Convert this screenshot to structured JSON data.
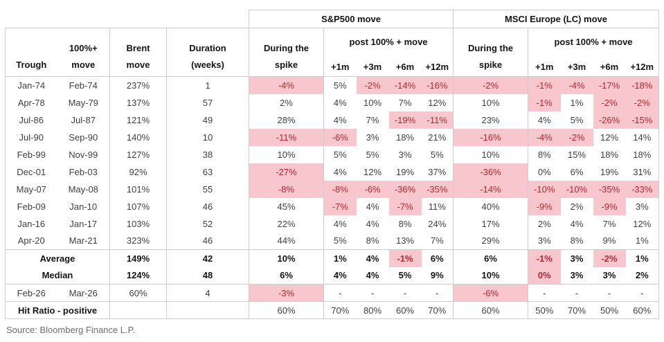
{
  "table": {
    "groups": [
      "S&P500 move",
      "MSCI Europe (LC) move"
    ],
    "headers": {
      "trough": "Trough",
      "peak": "100%+\nmove",
      "brent": "Brent\nmove",
      "duration": "Duration\n(weeks)",
      "during": "During the\nspike",
      "post": "post 100% + move",
      "months": [
        "+1m",
        "+3m",
        "+6m",
        "+12m"
      ]
    },
    "episodes": [
      {
        "trough": "Jan-74",
        "peak": "Feb-74",
        "brent": "237%",
        "weeks": "1",
        "cells": [
          [
            "-4%",
            1
          ],
          [
            "5%",
            0
          ],
          [
            "-2%",
            1
          ],
          [
            "-14%",
            1
          ],
          [
            "-16%",
            1
          ],
          [
            "-2%",
            1
          ],
          [
            "-1%",
            1
          ],
          [
            "-4%",
            1
          ],
          [
            "-17%",
            1
          ],
          [
            "-18%",
            1
          ]
        ]
      },
      {
        "trough": "Apr-78",
        "peak": "May-79",
        "brent": "137%",
        "weeks": "57",
        "cells": [
          [
            "2%",
            0
          ],
          [
            "4%",
            0
          ],
          [
            "10%",
            0
          ],
          [
            "7%",
            0
          ],
          [
            "12%",
            0
          ],
          [
            "10%",
            0
          ],
          [
            "-1%",
            1
          ],
          [
            "1%",
            0
          ],
          [
            "-2%",
            1
          ],
          [
            "-2%",
            1
          ]
        ]
      },
      {
        "trough": "Jul-86",
        "peak": "Jul-87",
        "brent": "121%",
        "weeks": "49",
        "cells": [
          [
            "28%",
            0
          ],
          [
            "4%",
            0
          ],
          [
            "7%",
            0
          ],
          [
            "-19%",
            1
          ],
          [
            "-11%",
            1
          ],
          [
            "23%",
            0
          ],
          [
            "4%",
            0
          ],
          [
            "5%",
            0
          ],
          [
            "-26%",
            1
          ],
          [
            "-15%",
            1
          ]
        ]
      },
      {
        "trough": "Jul-90",
        "peak": "Sep-90",
        "brent": "140%",
        "weeks": "10",
        "cells": [
          [
            "-11%",
            1
          ],
          [
            "-6%",
            1
          ],
          [
            "3%",
            0
          ],
          [
            "18%",
            0
          ],
          [
            "21%",
            0
          ],
          [
            "-16%",
            1
          ],
          [
            "-4%",
            1
          ],
          [
            "-2%",
            1
          ],
          [
            "12%",
            0
          ],
          [
            "14%",
            0
          ]
        ]
      },
      {
        "trough": "Feb-99",
        "peak": "Nov-99",
        "brent": "127%",
        "weeks": "38",
        "cells": [
          [
            "10%",
            0
          ],
          [
            "5%",
            0
          ],
          [
            "5%",
            0
          ],
          [
            "3%",
            0
          ],
          [
            "5%",
            0
          ],
          [
            "10%",
            0
          ],
          [
            "8%",
            0
          ],
          [
            "15%",
            0
          ],
          [
            "18%",
            0
          ],
          [
            "18%",
            0
          ]
        ]
      },
      {
        "trough": "Dec-01",
        "peak": "Feb-03",
        "brent": "92%",
        "weeks": "63",
        "cells": [
          [
            "-27%",
            1
          ],
          [
            "4%",
            0
          ],
          [
            "12%",
            0
          ],
          [
            "19%",
            0
          ],
          [
            "37%",
            0
          ],
          [
            "-36%",
            1
          ],
          [
            "0%",
            0
          ],
          [
            "6%",
            0
          ],
          [
            "19%",
            0
          ],
          [
            "31%",
            0
          ]
        ]
      },
      {
        "trough": "May-07",
        "peak": "May-08",
        "brent": "101%",
        "weeks": "55",
        "cells": [
          [
            "-8%",
            1
          ],
          [
            "-8%",
            1
          ],
          [
            "-6%",
            1
          ],
          [
            "-36%",
            1
          ],
          [
            "-35%",
            1
          ],
          [
            "-14%",
            1
          ],
          [
            "-10%",
            1
          ],
          [
            "-10%",
            1
          ],
          [
            "-35%",
            1
          ],
          [
            "-33%",
            1
          ]
        ]
      },
      {
        "trough": "Feb-09",
        "peak": "Jan-10",
        "brent": "107%",
        "weeks": "46",
        "cells": [
          [
            "45%",
            0
          ],
          [
            "-7%",
            1
          ],
          [
            "4%",
            0
          ],
          [
            "-7%",
            1
          ],
          [
            "11%",
            0
          ],
          [
            "40%",
            0
          ],
          [
            "-9%",
            1
          ],
          [
            "2%",
            0
          ],
          [
            "-9%",
            1
          ],
          [
            "3%",
            0
          ]
        ]
      },
      {
        "trough": "Jan-16",
        "peak": "Jan-17",
        "brent": "103%",
        "weeks": "52",
        "cells": [
          [
            "22%",
            0
          ],
          [
            "4%",
            0
          ],
          [
            "4%",
            0
          ],
          [
            "8%",
            0
          ],
          [
            "24%",
            0
          ],
          [
            "17%",
            0
          ],
          [
            "2%",
            0
          ],
          [
            "4%",
            0
          ],
          [
            "7%",
            0
          ],
          [
            "12%",
            0
          ]
        ]
      },
      {
        "trough": "Apr-20",
        "peak": "Mar-21",
        "brent": "323%",
        "weeks": "46",
        "cells": [
          [
            "44%",
            0
          ],
          [
            "5%",
            0
          ],
          [
            "8%",
            0
          ],
          [
            "13%",
            0
          ],
          [
            "7%",
            0
          ],
          [
            "29%",
            0
          ],
          [
            "3%",
            0
          ],
          [
            "8%",
            0
          ],
          [
            "9%",
            0
          ],
          [
            "1%",
            0
          ]
        ]
      }
    ],
    "summary": [
      {
        "label": "Average",
        "brent": "149%",
        "weeks": "42",
        "cells": [
          [
            "10%",
            0
          ],
          [
            "1%",
            0
          ],
          [
            "4%",
            0
          ],
          [
            "-1%",
            1
          ],
          [
            "6%",
            0
          ],
          [
            "6%",
            0
          ],
          [
            "-1%",
            1
          ],
          [
            "3%",
            0
          ],
          [
            "-2%",
            1
          ],
          [
            "1%",
            0
          ]
        ]
      },
      {
        "label": "Median",
        "brent": "124%",
        "weeks": "48",
        "cells": [
          [
            "6%",
            0
          ],
          [
            "4%",
            0
          ],
          [
            "4%",
            0
          ],
          [
            "5%",
            0
          ],
          [
            "9%",
            0
          ],
          [
            "10%",
            0
          ],
          [
            "0%",
            1
          ],
          [
            "3%",
            0
          ],
          [
            "3%",
            0
          ],
          [
            "2%",
            0
          ]
        ]
      }
    ],
    "current": {
      "trough": "Feb-26",
      "peak": "Mar-26",
      "brent": "60%",
      "weeks": "4",
      "cells": [
        [
          "-3%",
          1
        ],
        [
          "-",
          0
        ],
        [
          "-",
          0
        ],
        [
          "-",
          0
        ],
        [
          "-",
          0
        ],
        [
          "-6%",
          1
        ],
        [
          "-",
          0
        ],
        [
          "-",
          0
        ],
        [
          "-",
          0
        ],
        [
          "-",
          0
        ]
      ]
    },
    "hit_ratio": {
      "label": "Hit Ratio - positive",
      "cells": [
        [
          "60%",
          0
        ],
        [
          "70%",
          0
        ],
        [
          "80%",
          0
        ],
        [
          "60%",
          0
        ],
        [
          "70%",
          0
        ],
        [
          "60%",
          0
        ],
        [
          "50%",
          0
        ],
        [
          "70%",
          0
        ],
        [
          "50%",
          0
        ],
        [
          "60%",
          0
        ]
      ]
    }
  },
  "source": "Source: Bloomberg Finance L.P.",
  "colors": {
    "highlight_bg": "#f8c7cd",
    "negative_text": "#b4262f"
  }
}
